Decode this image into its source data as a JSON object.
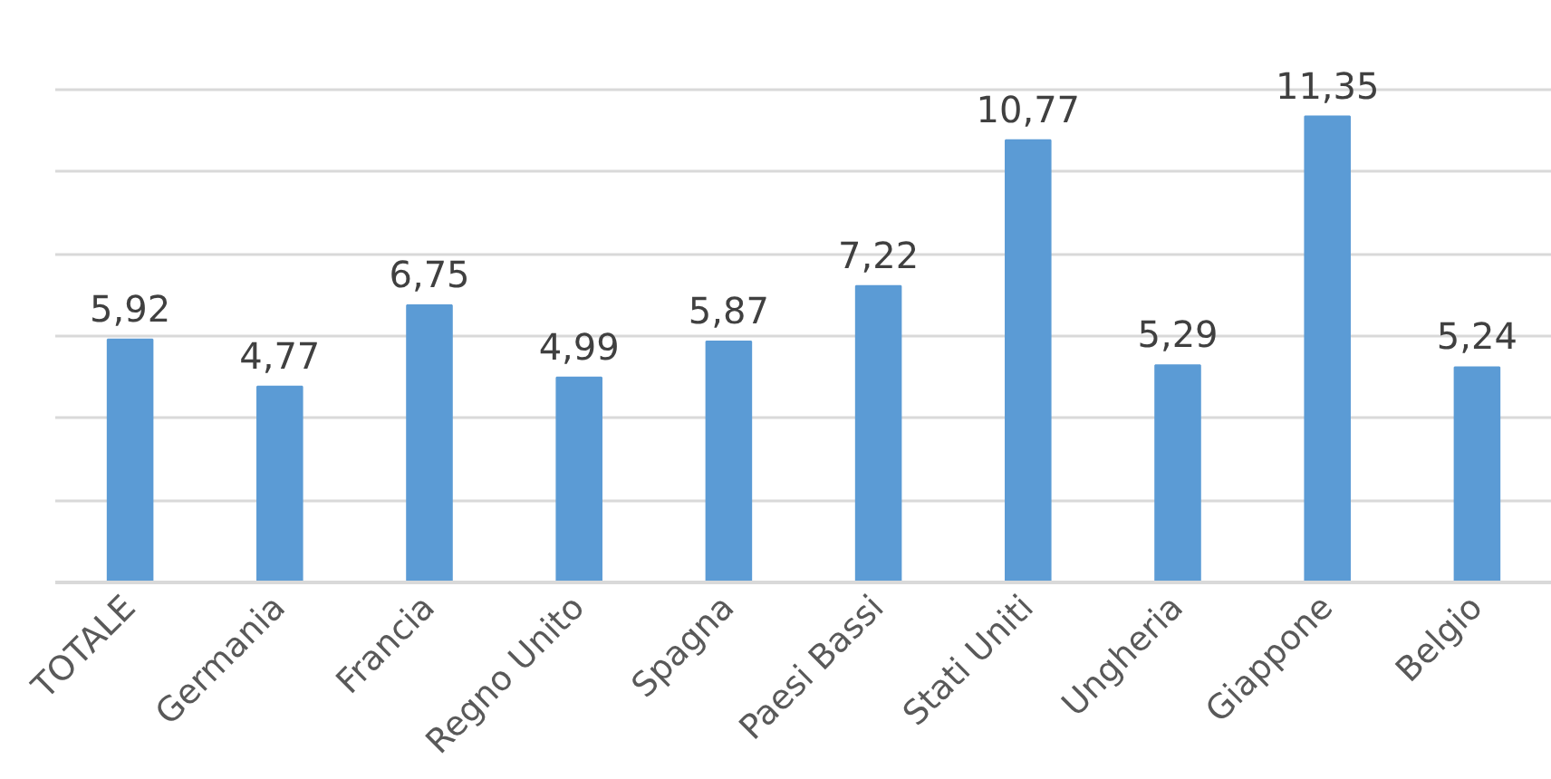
{
  "chart_data": {
    "type": "bar",
    "categories": [
      "TOTALE",
      "Germania",
      "Francia",
      "Regno Unito",
      "Spagna",
      "Paesi Bassi",
      "Stati Uniti",
      "Ungheria",
      "Giappone",
      "Belgio"
    ],
    "values": [
      5.92,
      4.77,
      6.75,
      4.99,
      5.87,
      7.22,
      10.77,
      5.29,
      11.35,
      5.24
    ],
    "value_labels": [
      "5,92",
      "4,77",
      "6,75",
      "4,99",
      "5,87",
      "7,22",
      "10,77",
      "5,29",
      "11,35",
      "5,24"
    ],
    "color": "#5b9bd5",
    "yticks": [
      {
        "value": 0,
        "label": null
      },
      {
        "value": 2,
        "label": null
      },
      {
        "value": 4,
        "label": null
      },
      {
        "value": 6,
        "label": null
      },
      {
        "value": 8,
        "label": null
      },
      {
        "value": 10,
        "label": null
      },
      {
        "value": 12,
        "label": null
      }
    ],
    "grid": "y",
    "tick_labels": "x"
  }
}
